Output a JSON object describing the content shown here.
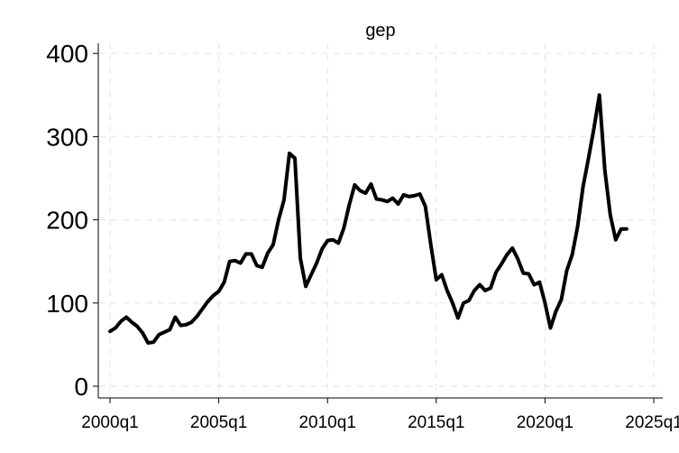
{
  "chart_data": {
    "type": "line",
    "title": "gep",
    "xlabel": "",
    "ylabel": "",
    "xlim": [
      "2000q1",
      "2025q1"
    ],
    "ylim": [
      0,
      400
    ],
    "grid": true,
    "legend": "none",
    "line_color": "#000000",
    "yticks": [
      {
        "value": 0,
        "label": "0"
      },
      {
        "value": 100,
        "label": "100"
      },
      {
        "value": 200,
        "label": "200"
      },
      {
        "value": 300,
        "label": "300"
      },
      {
        "value": 400,
        "label": "400"
      }
    ],
    "xticks": [
      {
        "value": "2000q1",
        "label": "2000q1"
      },
      {
        "value": "2005q1",
        "label": "2005q1"
      },
      {
        "value": "2010q1",
        "label": "2010q1"
      },
      {
        "value": "2015q1",
        "label": "2015q1"
      },
      {
        "value": "2020q1",
        "label": "2020q1"
      },
      {
        "value": "2025q1",
        "label": "2025q1"
      }
    ],
    "series": [
      {
        "x": [
          "2000q1",
          "2000q2",
          "2000q3",
          "2000q4",
          "2001q1",
          "2001q2",
          "2001q3",
          "2001q4",
          "2002q1",
          "2002q2",
          "2002q3",
          "2002q4",
          "2003q1",
          "2003q2",
          "2003q3",
          "2003q4",
          "2004q1",
          "2004q2",
          "2004q3",
          "2004q4",
          "2005q1",
          "2005q2",
          "2005q3",
          "2005q4",
          "2006q1",
          "2006q2",
          "2006q3",
          "2006q4",
          "2007q1",
          "2007q2",
          "2007q3",
          "2007q4",
          "2008q1",
          "2008q2",
          "2008q3",
          "2008q4",
          "2009q1",
          "2009q2",
          "2009q3",
          "2009q4",
          "2010q1",
          "2010q2",
          "2010q3",
          "2010q4",
          "2011q1",
          "2011q2",
          "2011q3",
          "2011q4",
          "2012q1",
          "2012q2",
          "2012q3",
          "2012q4",
          "2013q1",
          "2013q2",
          "2013q3",
          "2013q4",
          "2014q1",
          "2014q2",
          "2014q3",
          "2014q4",
          "2015q1",
          "2015q2",
          "2015q3",
          "2015q4",
          "2016q1",
          "2016q2",
          "2016q3",
          "2016q4",
          "2017q1",
          "2017q2",
          "2017q3",
          "2017q4",
          "2018q1",
          "2018q2",
          "2018q3",
          "2018q4",
          "2019q1",
          "2019q2",
          "2019q3",
          "2019q4",
          "2020q1",
          "2020q2",
          "2020q3",
          "2020q4",
          "2021q1",
          "2021q2",
          "2021q3",
          "2021q4",
          "2022q1",
          "2022q2",
          "2022q3",
          "2022q4",
          "2023q1",
          "2023q2",
          "2023q3",
          "2023q4"
        ],
        "values": [
          66,
          70,
          78,
          83,
          77,
          72,
          64,
          52,
          53,
          62,
          65,
          68,
          83,
          73,
          74,
          77,
          84,
          93,
          102,
          109,
          114,
          125,
          150,
          151,
          148,
          159,
          159,
          145,
          143,
          160,
          170,
          200,
          224,
          280,
          274,
          154,
          120,
          134,
          148,
          165,
          175,
          176,
          172,
          190,
          218,
          242,
          235,
          232,
          243,
          225,
          224,
          222,
          226,
          219,
          230,
          228,
          229,
          231,
          216,
          170,
          128,
          134,
          115,
          100,
          82,
          100,
          103,
          115,
          122,
          115,
          118,
          137,
          147,
          158,
          166,
          153,
          136,
          135,
          122,
          125,
          100,
          70,
          90,
          104,
          139,
          158,
          192,
          240,
          274,
          310,
          350,
          260,
          206,
          176,
          189,
          189
        ]
      }
    ]
  }
}
